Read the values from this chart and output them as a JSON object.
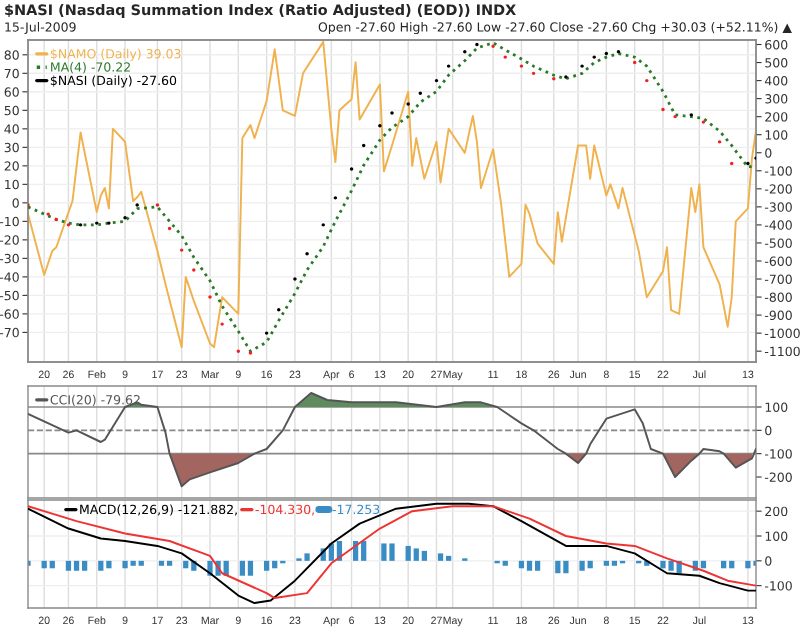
{
  "chart_data": [
    {
      "type": "line",
      "title": "$NASI (Nasdaq Summation Index (Ratio Adjusted) (EOD)) INDX",
      "subtitle": "15-Jul-2009",
      "annotations": [
        "Open -27.60 High -27.60 Low -27.60 Close -27.60 Chg +30.03 (+52.11%) ▲"
      ],
      "x": [
        "2009-01-16",
        "2009-01-21",
        "2009-01-23",
        "2009-01-26",
        "2009-01-29",
        "2009-02-02",
        "2009-02-05",
        "2009-02-09",
        "2009-02-12",
        "2009-02-17",
        "2009-02-20",
        "2009-02-23",
        "2009-02-26",
        "2009-03-02",
        "2009-03-05",
        "2009-03-09",
        "2009-03-12",
        "2009-03-16",
        "2009-03-19",
        "2009-03-23",
        "2009-03-26",
        "2009-03-30",
        "2009-04-02",
        "2009-04-06",
        "2009-04-09",
        "2009-04-13",
        "2009-04-16",
        "2009-04-20",
        "2009-04-23",
        "2009-04-27",
        "2009-04-30",
        "2009-05-04",
        "2009-05-07",
        "2009-05-11",
        "2009-05-14",
        "2009-05-18",
        "2009-05-21",
        "2009-05-26",
        "2009-05-29",
        "2009-06-02",
        "2009-06-05",
        "2009-06-08",
        "2009-06-11",
        "2009-06-15",
        "2009-06-18",
        "2009-06-22",
        "2009-06-25",
        "2009-06-29",
        "2009-07-02",
        "2009-07-06",
        "2009-07-09",
        "2009-07-13",
        "2009-07-15"
      ],
      "xlim": [
        "2009-01-16",
        "2009-07-15"
      ],
      "xticks": [
        {
          "value": "2009-01-20",
          "label": "20"
        },
        {
          "value": "2009-01-26",
          "label": "26"
        },
        {
          "value": "2009-02-02",
          "label": "Feb"
        },
        {
          "value": "2009-02-09",
          "label": "9"
        },
        {
          "value": "2009-02-17",
          "label": "17"
        },
        {
          "value": "2009-02-23",
          "label": "23"
        },
        {
          "value": "2009-03-02",
          "label": "Mar"
        },
        {
          "value": "2009-03-09",
          "label": "9"
        },
        {
          "value": "2009-03-16",
          "label": "16"
        },
        {
          "value": "2009-03-23",
          "label": "23"
        },
        {
          "value": "2009-04-01",
          "label": "Apr"
        },
        {
          "value": "2009-04-06",
          "label": "6"
        },
        {
          "value": "2009-04-13",
          "label": "13"
        },
        {
          "value": "2009-04-20",
          "label": "20"
        },
        {
          "value": "2009-04-27",
          "label": "27"
        },
        {
          "value": "2009-05-01",
          "label": "May"
        },
        {
          "value": "2009-05-11",
          "label": "11"
        },
        {
          "value": "2009-05-18",
          "label": "18"
        },
        {
          "value": "2009-05-26",
          "label": "26"
        },
        {
          "value": "2009-06-01",
          "label": "Jun"
        },
        {
          "value": "2009-06-08",
          "label": "8"
        },
        {
          "value": "2009-06-15",
          "label": "15"
        },
        {
          "value": "2009-06-22",
          "label": "22"
        },
        {
          "value": "2009-07-01",
          "label": "Jul"
        },
        {
          "value": "2009-07-13",
          "label": "13"
        }
      ],
      "ylim": [
        -86,
        88
      ],
      "yticks": [
        -70,
        -60,
        -50,
        -40,
        -30,
        -20,
        -10,
        0,
        10,
        20,
        30,
        40,
        50,
        60,
        70,
        80
      ],
      "y2lim": [
        -1160,
        625
      ],
      "y2ticks": [
        -1100,
        -1000,
        -900,
        -800,
        -700,
        -600,
        -500,
        -400,
        -300,
        -200,
        -100,
        0,
        100,
        200,
        300,
        400,
        500,
        600
      ],
      "grid": true,
      "legend": "top left",
      "series": [
        {
          "name": "$NAMO (Daily) 39.03",
          "color": "#f0b24e",
          "axis": "y",
          "x": [
            "2009-01-16",
            "2009-01-20",
            "2009-01-22",
            "2009-01-23",
            "2009-01-27",
            "2009-01-29",
            "2009-02-02",
            "2009-02-03",
            "2009-02-04",
            "2009-02-05",
            "2009-02-06",
            "2009-02-09",
            "2009-02-11",
            "2009-02-12",
            "2009-02-13",
            "2009-02-17",
            "2009-02-19",
            "2009-02-23",
            "2009-02-24",
            "2009-02-26",
            "2009-03-02",
            "2009-03-03",
            "2009-03-05",
            "2009-03-09",
            "2009-03-10",
            "2009-03-12",
            "2009-03-13",
            "2009-03-16",
            "2009-03-18",
            "2009-03-20",
            "2009-03-23",
            "2009-03-25",
            "2009-03-30",
            "2009-04-01",
            "2009-04-02",
            "2009-04-03",
            "2009-04-06",
            "2009-04-07",
            "2009-04-08",
            "2009-04-13",
            "2009-04-14",
            "2009-04-16",
            "2009-04-20",
            "2009-04-21",
            "2009-04-22",
            "2009-04-24",
            "2009-04-27",
            "2009-04-28",
            "2009-04-30",
            "2009-05-04",
            "2009-05-06",
            "2009-05-07",
            "2009-05-08",
            "2009-05-11",
            "2009-05-13",
            "2009-05-15",
            "2009-05-18",
            "2009-05-19",
            "2009-05-20",
            "2009-05-22",
            "2009-05-26",
            "2009-05-27",
            "2009-05-28",
            "2009-06-01",
            "2009-06-03",
            "2009-06-04",
            "2009-06-05",
            "2009-06-08",
            "2009-06-09",
            "2009-06-11",
            "2009-06-12",
            "2009-06-16",
            "2009-06-18",
            "2009-06-22",
            "2009-06-23",
            "2009-06-24",
            "2009-06-26",
            "2009-06-29",
            "2009-06-30",
            "2009-07-01",
            "2009-07-02",
            "2009-07-06",
            "2009-07-08",
            "2009-07-09",
            "2009-07-10",
            "2009-07-13",
            "2009-07-14",
            "2009-07-15"
          ],
          "values": [
            -6,
            -39,
            -26,
            -24,
            1,
            38,
            -5,
            4,
            8,
            -3,
            40,
            33,
            1,
            3,
            6,
            -26,
            -44,
            -78,
            -40,
            -53,
            -76,
            -78,
            -51,
            -60,
            35,
            42,
            35,
            55,
            83,
            50,
            47,
            70,
            87,
            40,
            22,
            50,
            56,
            76,
            45,
            64,
            17,
            31,
            60,
            20,
            35,
            13,
            33,
            11,
            40,
            27,
            47,
            33,
            8,
            29,
            -1,
            -40,
            -33,
            -1,
            -6,
            -22,
            -33,
            -5,
            -21,
            31,
            31,
            13,
            31,
            4,
            10,
            -3,
            8,
            -26,
            -51,
            -37,
            -24,
            -58,
            -60,
            8,
            -5,
            10,
            -24,
            -44,
            -67,
            -51,
            -10,
            -3,
            24,
            39
          ]
        },
        {
          "name": "MA(4) -70.22",
          "color": "#2a7a2a",
          "axis": "y2",
          "line_style": "dotted",
          "values": [
            -300,
            -350,
            -370,
            -390,
            -400,
            -400,
            -390,
            -380,
            -310,
            -300,
            -380,
            -460,
            -580,
            -710,
            -850,
            -990,
            -1100,
            -1050,
            -930,
            -780,
            -650,
            -520,
            -380,
            -210,
            -70,
            70,
            140,
            200,
            280,
            340,
            430,
            510,
            580,
            610,
            570,
            520,
            480,
            430,
            410,
            440,
            500,
            530,
            550,
            530,
            480,
            340,
            210,
            200,
            190,
            120,
            40,
            -80,
            -70
          ]
        },
        {
          "name": "$NASI (Daily) -27.60",
          "color": "#000000",
          "axis": "y2",
          "type": "scatter",
          "values": [
            -290,
            -340,
            -370,
            -400,
            -400,
            -390,
            -390,
            -360,
            -290,
            -290,
            -420,
            -540,
            -650,
            -800,
            -950,
            -1100,
            -1110,
            -1000,
            -870,
            -700,
            -560,
            -400,
            -250,
            -90,
            40,
            150,
            220,
            270,
            330,
            400,
            480,
            560,
            600,
            590,
            530,
            480,
            440,
            410,
            420,
            480,
            530,
            550,
            560,
            500,
            400,
            240,
            200,
            210,
            170,
            60,
            -60,
            -60,
            -30
          ],
          "colors": [
            "#ee2222",
            "#ee2222",
            "#ee2222",
            "#ee2222",
            "#000000",
            "#000000",
            "#000000",
            "#000000",
            "#000000",
            "#ee2222",
            "#ee2222",
            "#ee2222",
            "#ee2222",
            "#ee2222",
            "#ee2222",
            "#ee2222",
            "#ee2222",
            "#000000",
            "#000000",
            "#000000",
            "#000000",
            "#000000",
            "#000000",
            "#000000",
            "#000000",
            "#000000",
            "#000000",
            "#000000",
            "#000000",
            "#000000",
            "#000000",
            "#000000",
            "#000000",
            "#ee2222",
            "#ee2222",
            "#ee2222",
            "#ee2222",
            "#ee2222",
            "#000000",
            "#000000",
            "#000000",
            "#000000",
            "#000000",
            "#ee2222",
            "#ee2222",
            "#ee2222",
            "#ee2222",
            "#000000",
            "#ee2222",
            "#ee2222",
            "#ee2222",
            "#000000",
            "#000000"
          ]
        }
      ]
    },
    {
      "type": "line",
      "x": [
        "2009-01-16",
        "2009-01-26",
        "2009-01-28",
        "2009-02-03",
        "2009-02-04",
        "2009-02-09",
        "2009-02-12",
        "2009-02-13",
        "2009-02-17",
        "2009-02-19",
        "2009-02-20",
        "2009-02-23",
        "2009-02-25",
        "2009-03-02",
        "2009-03-09",
        "2009-03-13",
        "2009-03-16",
        "2009-03-20",
        "2009-03-23",
        "2009-03-27",
        "2009-03-31",
        "2009-04-06",
        "2009-04-17",
        "2009-04-27",
        "2009-05-04",
        "2009-05-08",
        "2009-05-12",
        "2009-05-18",
        "2009-05-21",
        "2009-05-27",
        "2009-05-29",
        "2009-06-01",
        "2009-06-03",
        "2009-06-04",
        "2009-06-08",
        "2009-06-15",
        "2009-06-17",
        "2009-06-19",
        "2009-06-22",
        "2009-06-25",
        "2009-06-29",
        "2009-07-01",
        "2009-07-02",
        "2009-07-06",
        "2009-07-07",
        "2009-07-10",
        "2009-07-14",
        "2009-07-15"
      ],
      "xlim": [
        "2009-01-16",
        "2009-07-15"
      ],
      "xticks": [
        {
          "value": "2009-01-20",
          "label": null
        },
        {
          "value": "2009-01-26",
          "label": null
        },
        {
          "value": "2009-02-02",
          "label": null
        },
        {
          "value": "2009-02-09",
          "label": null
        },
        {
          "value": "2009-02-17",
          "label": null
        },
        {
          "value": "2009-02-23",
          "label": null
        },
        {
          "value": "2009-03-02",
          "label": null
        },
        {
          "value": "2009-03-09",
          "label": null
        },
        {
          "value": "2009-03-16",
          "label": null
        },
        {
          "value": "2009-03-23",
          "label": null
        },
        {
          "value": "2009-04-01",
          "label": null
        },
        {
          "value": "2009-04-06",
          "label": null
        },
        {
          "value": "2009-04-13",
          "label": null
        },
        {
          "value": "2009-04-20",
          "label": null
        },
        {
          "value": "2009-04-27",
          "label": null
        },
        {
          "value": "2009-05-01",
          "label": null
        },
        {
          "value": "2009-05-11",
          "label": null
        },
        {
          "value": "2009-05-18",
          "label": null
        },
        {
          "value": "2009-05-26",
          "label": null
        },
        {
          "value": "2009-06-01",
          "label": null
        },
        {
          "value": "2009-06-08",
          "label": null
        },
        {
          "value": "2009-06-15",
          "label": null
        },
        {
          "value": "2009-06-22",
          "label": null
        },
        {
          "value": "2009-07-01",
          "label": null
        },
        {
          "value": "2009-07-13",
          "label": null
        }
      ],
      "tick_labels": "y",
      "ylim": [
        -290,
        190
      ],
      "yticks": [
        -200,
        -100,
        0,
        100
      ],
      "grid": "x",
      "legend": "top left",
      "ref_lines": [
        {
          "axis": "y",
          "value": 100,
          "color": "#888888"
        },
        {
          "axis": "y",
          "value": 0,
          "color": "#888888",
          "line_style": "dashed"
        },
        {
          "axis": "y",
          "value": -100,
          "color": "#888888"
        }
      ],
      "series": [
        {
          "type": "area",
          "color": "#5e8c5e",
          "values": [
            null,
            null,
            null,
            null,
            null,
            100,
            120,
            110,
            100,
            null,
            null,
            null,
            null,
            null,
            null,
            null,
            null,
            null,
            100,
            160,
            130,
            120,
            120,
            100,
            120,
            120,
            100,
            null,
            null,
            null,
            null,
            null,
            null,
            null,
            null,
            null,
            null,
            null,
            null,
            null,
            null,
            null,
            null,
            null,
            null,
            null,
            null,
            null
          ]
        },
        {
          "type": "area",
          "color": "#a3655f",
          "values": [
            null,
            null,
            null,
            null,
            null,
            null,
            null,
            null,
            null,
            null,
            -100,
            -240,
            -210,
            -180,
            -140,
            -100,
            null,
            null,
            null,
            null,
            null,
            null,
            null,
            null,
            null,
            null,
            null,
            null,
            null,
            null,
            -100,
            -140,
            -100,
            null,
            null,
            null,
            null,
            null,
            -100,
            -200,
            -130,
            -100,
            null,
            null,
            -100,
            -160,
            -120,
            null
          ]
        },
        {
          "name": "CCI(20) -79.62",
          "color": "#555555",
          "values": [
            70,
            -10,
            0,
            -50,
            -40,
            100,
            120,
            110,
            100,
            -10,
            -100,
            -240,
            -210,
            -180,
            -140,
            -100,
            -80,
            0,
            100,
            160,
            130,
            120,
            120,
            100,
            120,
            120,
            100,
            30,
            0,
            -80,
            -100,
            -140,
            -100,
            -60,
            50,
            90,
            30,
            -80,
            -100,
            -200,
            -130,
            -100,
            -80,
            -90,
            -100,
            -160,
            -120,
            -80
          ]
        }
      ]
    },
    {
      "type": "line",
      "xlim": [
        "2009-01-16",
        "2009-07-15"
      ],
      "xticks": [
        {
          "value": "2009-01-20",
          "label": "20"
        },
        {
          "value": "2009-01-26",
          "label": "26"
        },
        {
          "value": "2009-02-02",
          "label": "Feb"
        },
        {
          "value": "2009-02-09",
          "label": "9"
        },
        {
          "value": "2009-02-17",
          "label": "17"
        },
        {
          "value": "2009-02-23",
          "label": "23"
        },
        {
          "value": "2009-03-02",
          "label": "Mar"
        },
        {
          "value": "2009-03-09",
          "label": "9"
        },
        {
          "value": "2009-03-16",
          "label": "16"
        },
        {
          "value": "2009-03-23",
          "label": "23"
        },
        {
          "value": "2009-04-01",
          "label": "Apr"
        },
        {
          "value": "2009-04-06",
          "label": "6"
        },
        {
          "value": "2009-04-13",
          "label": "13"
        },
        {
          "value": "2009-04-20",
          "label": "20"
        },
        {
          "value": "2009-04-27",
          "label": "27"
        },
        {
          "value": "2009-05-01",
          "label": "May"
        },
        {
          "value": "2009-05-11",
          "label": "11"
        },
        {
          "value": "2009-05-18",
          "label": "18"
        },
        {
          "value": "2009-05-26",
          "label": "26"
        },
        {
          "value": "2009-06-01",
          "label": "Jun"
        },
        {
          "value": "2009-06-08",
          "label": "8"
        },
        {
          "value": "2009-06-15",
          "label": "15"
        },
        {
          "value": "2009-06-22",
          "label": "22"
        },
        {
          "value": "2009-07-01",
          "label": "Jul"
        },
        {
          "value": "2009-07-13",
          "label": "13"
        }
      ],
      "ylim": [
        -190,
        245
      ],
      "yticks": [
        -100,
        0,
        100,
        200
      ],
      "grid": true,
      "legend": "top left",
      "series": [
        {
          "name": "MACD(12,26,9) -121.882,",
          "color": "#000000",
          "x": [
            "2009-01-16",
            "2009-01-26",
            "2009-02-03",
            "2009-02-09",
            "2009-02-17",
            "2009-02-23",
            "2009-03-02",
            "2009-03-09",
            "2009-03-13",
            "2009-03-17",
            "2009-03-23",
            "2009-04-01",
            "2009-04-08",
            "2009-04-17",
            "2009-04-27",
            "2009-05-05",
            "2009-05-11",
            "2009-05-18",
            "2009-05-29",
            "2009-06-08",
            "2009-06-15",
            "2009-06-23",
            "2009-07-01",
            "2009-07-06",
            "2009-07-13",
            "2009-07-15"
          ],
          "values": [
            210,
            130,
            90,
            80,
            60,
            30,
            -50,
            -140,
            -170,
            -160,
            -80,
            70,
            150,
            210,
            230,
            230,
            220,
            160,
            60,
            60,
            30,
            -50,
            -60,
            -90,
            -120,
            -120
          ]
        },
        {
          "name": "-104.330,",
          "color": "#ee3333",
          "x": [
            "2009-01-16",
            "2009-01-28",
            "2009-02-09",
            "2009-02-20",
            "2009-03-02",
            "2009-03-05",
            "2009-03-16",
            "2009-03-18",
            "2009-03-26",
            "2009-04-01",
            "2009-04-13",
            "2009-04-21",
            "2009-05-01",
            "2009-05-11",
            "2009-05-20",
            "2009-05-29",
            "2009-06-08",
            "2009-06-15",
            "2009-06-23",
            "2009-07-02",
            "2009-07-08",
            "2009-07-15"
          ],
          "values": [
            220,
            160,
            110,
            80,
            20,
            -50,
            -130,
            -150,
            -130,
            -10,
            130,
            200,
            220,
            220,
            170,
            100,
            70,
            60,
            10,
            -40,
            -80,
            -100
          ]
        },
        {
          "name": "-17.253",
          "color": "#3a8cc4",
          "type": "bar",
          "x": [
            "2009-01-16",
            "2009-01-20",
            "2009-01-22",
            "2009-01-26",
            "2009-01-28",
            "2009-01-30",
            "2009-02-03",
            "2009-02-05",
            "2009-02-09",
            "2009-02-11",
            "2009-02-13",
            "2009-02-18",
            "2009-02-20",
            "2009-02-24",
            "2009-02-26",
            "2009-03-02",
            "2009-03-04",
            "2009-03-06",
            "2009-03-10",
            "2009-03-12",
            "2009-03-16",
            "2009-03-18",
            "2009-03-20",
            "2009-03-24",
            "2009-03-26",
            "2009-03-30",
            "2009-04-01",
            "2009-04-03",
            "2009-04-07",
            "2009-04-09",
            "2009-04-14",
            "2009-04-16",
            "2009-04-20",
            "2009-04-22",
            "2009-04-24",
            "2009-04-28",
            "2009-04-30",
            "2009-05-04",
            "2009-05-06",
            "2009-05-08",
            "2009-05-12",
            "2009-05-14",
            "2009-05-18",
            "2009-05-20",
            "2009-05-22",
            "2009-05-27",
            "2009-05-29",
            "2009-06-02",
            "2009-06-04",
            "2009-06-08",
            "2009-06-10",
            "2009-06-12",
            "2009-06-16",
            "2009-06-18",
            "2009-06-22",
            "2009-06-24",
            "2009-06-26",
            "2009-06-30",
            "2009-07-02",
            "2009-07-07",
            "2009-07-09",
            "2009-07-13",
            "2009-07-15"
          ],
          "values": [
            -20,
            -30,
            -30,
            -40,
            -40,
            -40,
            -40,
            -30,
            -30,
            -20,
            -20,
            -20,
            -20,
            -30,
            -40,
            -60,
            -60,
            -60,
            -60,
            -60,
            -40,
            -30,
            -10,
            10,
            30,
            50,
            70,
            80,
            80,
            80,
            70,
            70,
            60,
            50,
            40,
            30,
            20,
            10,
            0,
            0,
            -10,
            -20,
            -30,
            -40,
            -40,
            -50,
            -50,
            -40,
            -30,
            -20,
            -20,
            -10,
            -10,
            -20,
            -30,
            -40,
            -50,
            -40,
            -30,
            -30,
            -30,
            -30,
            -20
          ]
        }
      ]
    }
  ]
}
